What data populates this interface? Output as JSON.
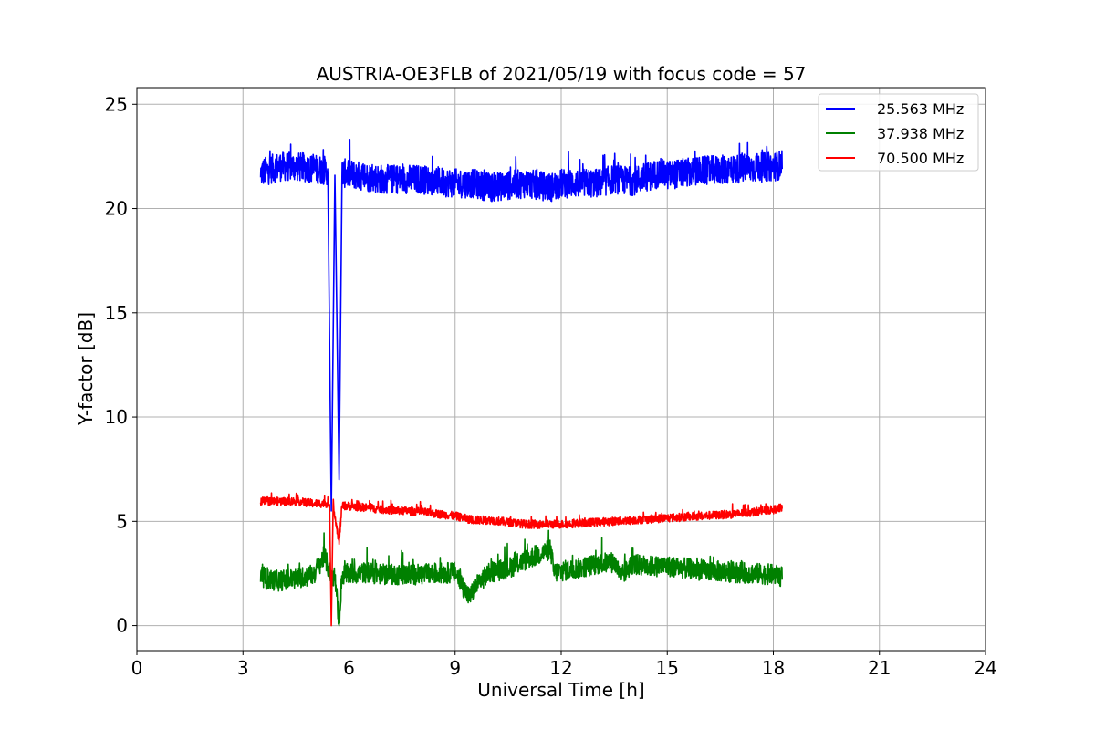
{
  "chart_data": {
    "type": "line",
    "title": "AUSTRIA-OE3FLB of 2021/05/19 with focus code = 57",
    "xlabel": "Universal Time [h]",
    "ylabel": "Y-factor [dB]",
    "xlim": [
      0,
      24
    ],
    "ylim": [
      -1.2,
      25.8
    ],
    "xticks": [
      0,
      3,
      6,
      9,
      12,
      15,
      18,
      21,
      24
    ],
    "yticks": [
      0,
      5,
      10,
      15,
      20,
      25
    ],
    "grid": true,
    "legend_position": "top-right",
    "series": [
      {
        "name": "25.563 MHz",
        "color": "#0000ff",
        "x": [
          3.5,
          4.0,
          4.5,
          5.0,
          5.4,
          5.5,
          5.6,
          5.72,
          5.8,
          6.5,
          7.0,
          8.0,
          9.0,
          9.5,
          10.0,
          11.0,
          11.7,
          12.0,
          13.0,
          13.5,
          14.0,
          14.8,
          15.0,
          16.0,
          17.0,
          18.0,
          18.25
        ],
        "y": [
          21.5,
          21.8,
          21.8,
          21.7,
          21.6,
          5.5,
          21.6,
          7.0,
          21.5,
          21.3,
          21.2,
          21.2,
          21.0,
          21.0,
          20.8,
          21.0,
          20.8,
          21.0,
          21.0,
          21.2,
          21.1,
          21.5,
          21.4,
          21.6,
          21.7,
          21.8,
          21.9
        ],
        "noise": 0.7
      },
      {
        "name": "37.938 MHz",
        "color": "#008000",
        "x": [
          3.5,
          4.0,
          4.5,
          5.0,
          5.3,
          5.5,
          5.6,
          5.72,
          5.8,
          6.5,
          7.0,
          8.0,
          9.0,
          9.4,
          9.7,
          10.0,
          10.5,
          11.0,
          11.7,
          11.8,
          12.5,
          13.0,
          13.5,
          13.7,
          14.0,
          14.5,
          15.0,
          16.0,
          17.0,
          18.0,
          18.25
        ],
        "y": [
          2.1,
          2.0,
          2.1,
          2.3,
          3.2,
          2.2,
          2.2,
          0.0,
          2.3,
          2.4,
          2.3,
          2.3,
          2.4,
          1.2,
          2.0,
          2.4,
          2.6,
          3.0,
          3.5,
          2.4,
          2.6,
          2.8,
          2.9,
          2.2,
          2.8,
          2.7,
          2.7,
          2.5,
          2.4,
          2.3,
          2.2
        ],
        "noise": 0.5
      },
      {
        "name": "70.500 MHz",
        "color": "#ff0000",
        "x": [
          3.5,
          4.0,
          4.5,
          5.0,
          5.45,
          5.5,
          5.55,
          5.72,
          5.8,
          6.5,
          7.0,
          8.0,
          9.0,
          9.5,
          10.0,
          10.5,
          11.0,
          11.5,
          12.0,
          13.0,
          14.0,
          15.0,
          16.0,
          17.0,
          18.0,
          18.25
        ],
        "y": [
          5.9,
          5.9,
          5.9,
          5.8,
          5.8,
          0.0,
          5.8,
          3.9,
          5.7,
          5.6,
          5.5,
          5.4,
          5.2,
          5.0,
          5.0,
          4.9,
          4.8,
          4.8,
          4.8,
          4.9,
          5.0,
          5.1,
          5.2,
          5.3,
          5.5,
          5.6
        ],
        "noise": 0.2
      }
    ]
  }
}
